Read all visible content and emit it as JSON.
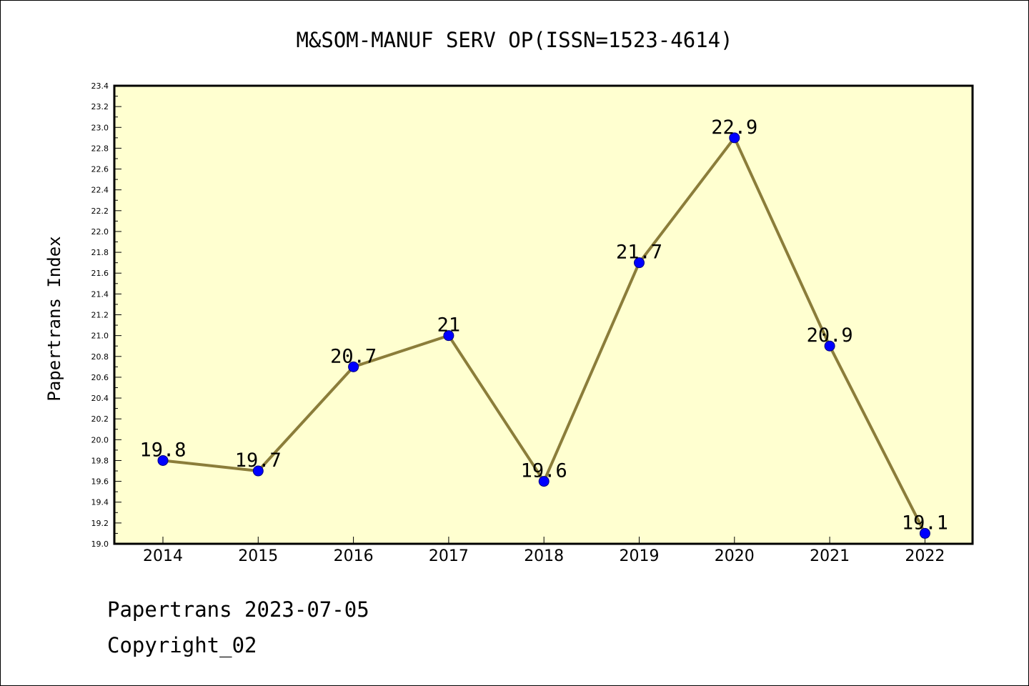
{
  "chart_data": {
    "type": "line",
    "title": "M&SOM-MANUF SERV OP(ISSN=1523-4614)",
    "xlabel": "",
    "ylabel": "Papertrans Index",
    "categories": [
      "2014",
      "2015",
      "2016",
      "2017",
      "2018",
      "2019",
      "2020",
      "2021",
      "2022"
    ],
    "series": [
      {
        "values": [
          19.8,
          19.7,
          20.7,
          21.0,
          19.6,
          21.7,
          22.9,
          20.9,
          19.1
        ],
        "labels": [
          "19.8",
          "19.7",
          "20.7",
          "21",
          "19.6",
          "21.7",
          "22.9",
          "20.9",
          "19.1"
        ]
      }
    ],
    "ylim": [
      19.0,
      23.4
    ],
    "yticks": [
      "19.0",
      "19.2",
      "19.4",
      "19.6",
      "19.8",
      "20.0",
      "20.2",
      "20.4",
      "20.6",
      "20.8",
      "21.0",
      "21.2",
      "21.4",
      "21.6",
      "21.8",
      "22.0",
      "22.2",
      "22.4",
      "22.6",
      "22.8",
      "23.0",
      "23.2",
      "23.4"
    ],
    "grid": false,
    "legend": "none",
    "colors": {
      "plot_background": "#ffffd0",
      "line": "#8b7d3a",
      "marker_fill": "#0000ff",
      "marker_stroke": "#000080",
      "axis": "#000000"
    }
  },
  "footer": {
    "line1": "Papertrans 2023-07-05",
    "line2": "Copyright_02"
  }
}
